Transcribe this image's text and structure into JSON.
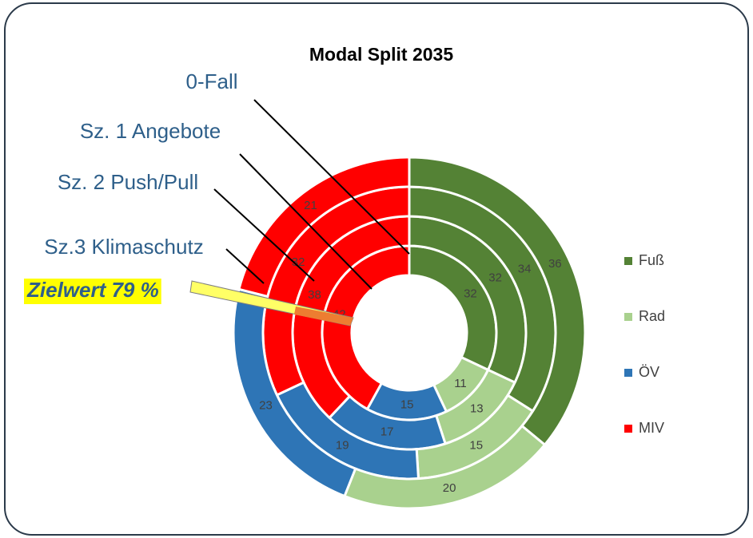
{
  "chart_data": {
    "type": "donut",
    "title": "Modal Split 2035",
    "categories": [
      "Fuß",
      "Rad",
      "ÖV",
      "MIV"
    ],
    "colors": [
      "#548235",
      "#a9d18e",
      "#2e75b6",
      "#ff0000"
    ],
    "series": [
      {
        "name": "0-Fall",
        "values": [
          32,
          11,
          15,
          42
        ]
      },
      {
        "name": "Sz. 1 Angebote",
        "values": [
          32,
          13,
          17,
          38
        ]
      },
      {
        "name": "Sz. 2 Push/Pull",
        "values": [
          34,
          15,
          19,
          32
        ]
      },
      {
        "name": "Sz.3 Klimaschutz",
        "values": [
          36,
          20,
          23,
          21
        ]
      }
    ],
    "annotation": "Zielwert 79 %",
    "legend": "right"
  }
}
